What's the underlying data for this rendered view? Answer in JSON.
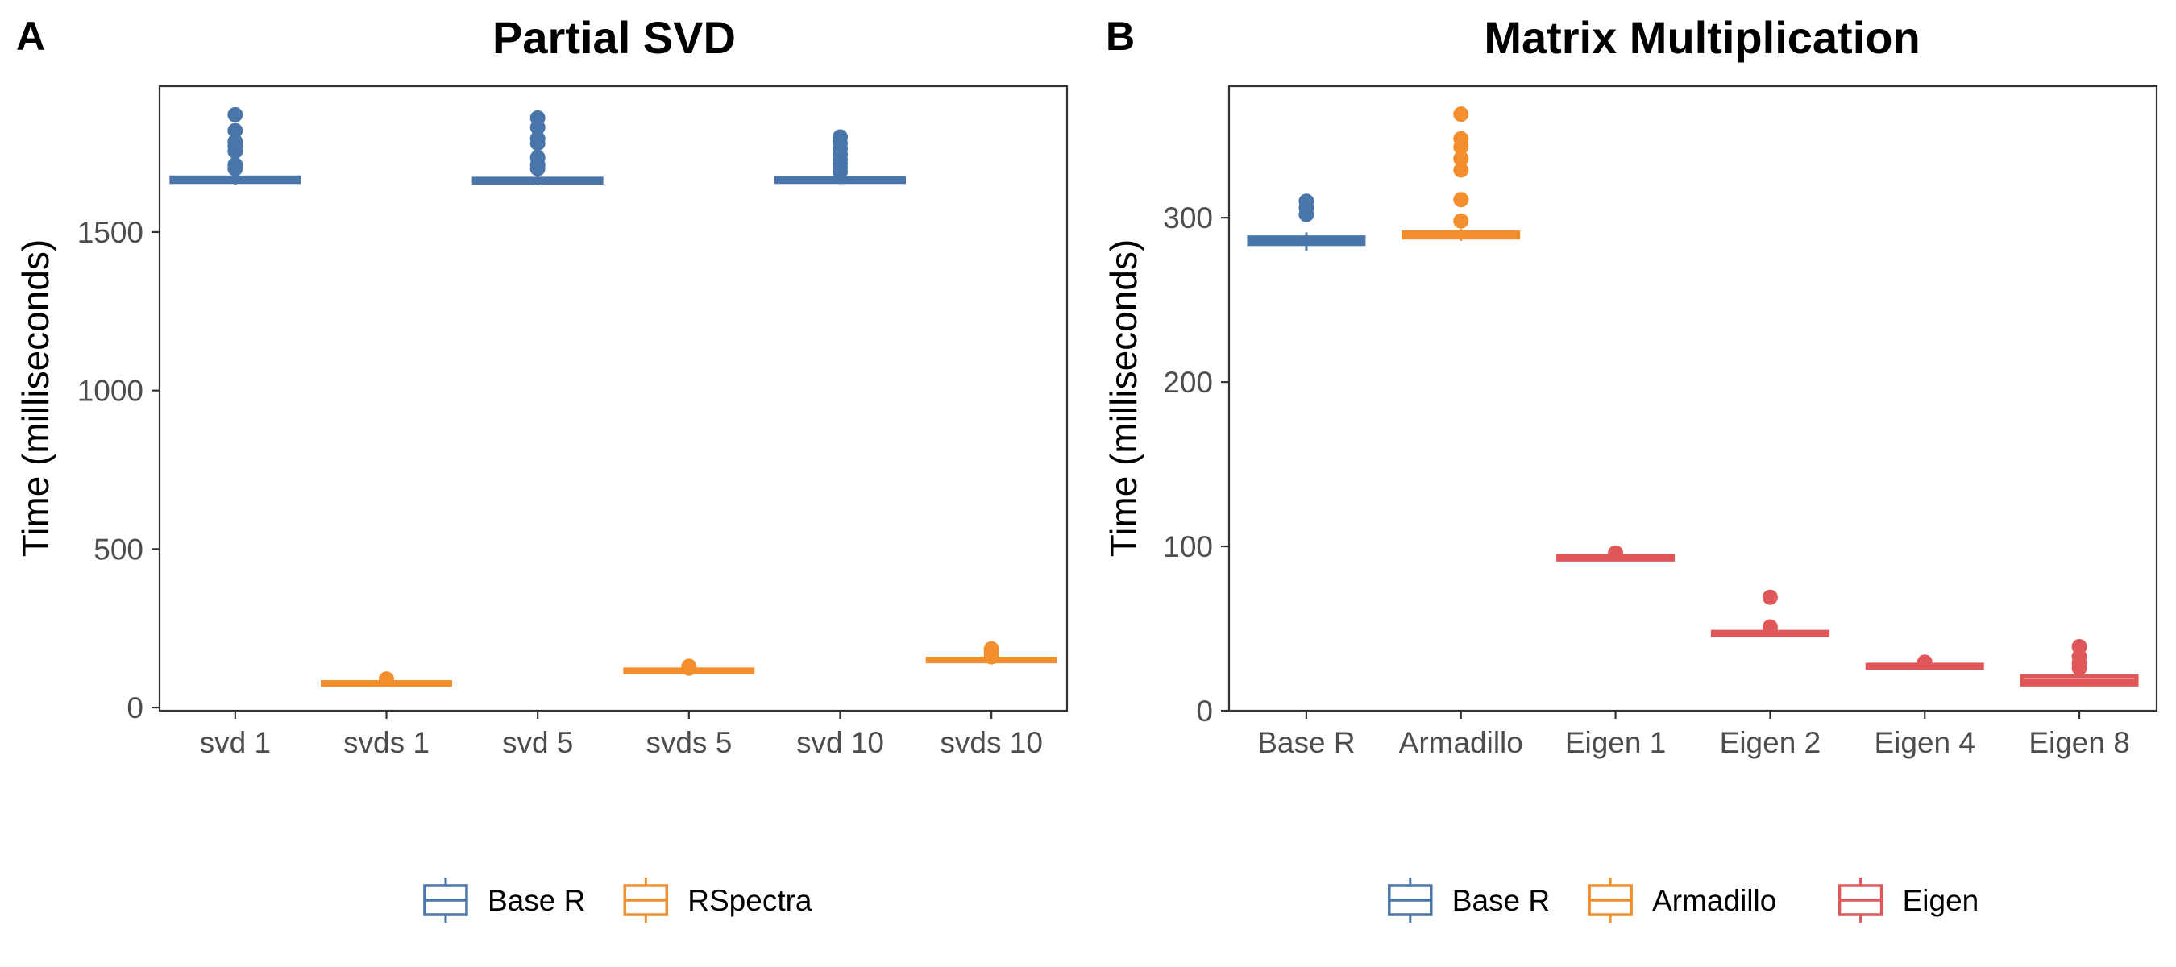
{
  "chart_data": [
    {
      "panel_label": "A",
      "type": "box",
      "title": "Partial SVD",
      "xlabel": "",
      "ylabel": "Time (milliseconds)",
      "ylim": [
        -10,
        1960
      ],
      "yticks": [
        0,
        500,
        1000,
        1500
      ],
      "categories": [
        "svd 1",
        "svds 1",
        "svd 5",
        "svds 5",
        "svd 10",
        "svds 10"
      ],
      "boxes": [
        {
          "category": "svd 1",
          "group": "Base R",
          "q1": 1658,
          "median": 1665,
          "q3": 1672,
          "whisker_low": 1650,
          "whisker_high": 1680,
          "outliers": [
            1700,
            1712,
            1755,
            1770,
            1785,
            1820,
            1870
          ]
        },
        {
          "category": "svds 1",
          "group": "RSpectra",
          "q1": 72,
          "median": 76,
          "q3": 80,
          "whisker_low": 70,
          "whisker_high": 82,
          "outliers": [
            90
          ]
        },
        {
          "category": "svd 5",
          "group": "Base R",
          "q1": 1656,
          "median": 1662,
          "q3": 1668,
          "whisker_low": 1648,
          "whisker_high": 1676,
          "outliers": [
            1700,
            1712,
            1735,
            1780,
            1795,
            1830,
            1860
          ]
        },
        {
          "category": "svds 5",
          "group": "RSpectra",
          "q1": 112,
          "median": 116,
          "q3": 120,
          "whisker_low": 110,
          "whisker_high": 122,
          "outliers": [
            124,
            130
          ]
        },
        {
          "category": "svd 10",
          "group": "Base R",
          "q1": 1658,
          "median": 1664,
          "q3": 1670,
          "whisker_low": 1652,
          "whisker_high": 1675,
          "outliers": [
            1690,
            1702,
            1715,
            1728,
            1745,
            1762,
            1780,
            1800
          ]
        },
        {
          "category": "svds 10",
          "group": "RSpectra",
          "q1": 146,
          "median": 150,
          "q3": 154,
          "whisker_low": 144,
          "whisker_high": 156,
          "outliers": [
            160,
            175,
            185
          ]
        }
      ],
      "legend": {
        "placement": "bottom",
        "entries": [
          {
            "name": "Base R",
            "color": "#4a75a8"
          },
          {
            "name": "RSpectra",
            "color": "#f28e2b"
          }
        ]
      },
      "grid": false
    },
    {
      "panel_label": "B",
      "type": "box",
      "title": "Matrix Multiplication",
      "xlabel": "",
      "ylabel": "Time (milliseconds)",
      "ylim": [
        0,
        380
      ],
      "yticks": [
        0,
        100,
        200,
        300
      ],
      "categories": [
        "Base R",
        "Armadillo",
        "Eigen 1",
        "Eigen 2",
        "Eigen 4",
        "Eigen 8"
      ],
      "boxes": [
        {
          "category": "Base R",
          "group": "Base R",
          "q1": 284,
          "median": 286,
          "q3": 288,
          "whisker_low": 280,
          "whisker_high": 291,
          "outliers": [
            302,
            306,
            310
          ]
        },
        {
          "category": "Armadillo",
          "group": "Armadillo",
          "q1": 288,
          "median": 290,
          "q3": 291,
          "whisker_low": 286,
          "whisker_high": 293,
          "outliers": [
            298,
            311,
            329,
            336,
            343,
            348,
            363
          ]
        },
        {
          "category": "Eigen 1",
          "group": "Eigen",
          "q1": 92,
          "median": 93,
          "q3": 94,
          "whisker_low": 91,
          "whisker_high": 95,
          "outliers": [
            96
          ]
        },
        {
          "category": "Eigen 2",
          "group": "Eigen",
          "q1": 46,
          "median": 47,
          "q3": 48,
          "whisker_low": 45,
          "whisker_high": 49,
          "outliers": [
            51,
            69
          ]
        },
        {
          "category": "Eigen 4",
          "group": "Eigen",
          "q1": 26,
          "median": 27,
          "q3": 28,
          "whisker_low": 25,
          "whisker_high": 29,
          "outliers": [
            29.5
          ]
        },
        {
          "category": "Eigen 8",
          "group": "Eigen",
          "q1": 16,
          "median": 18,
          "q3": 21,
          "whisker_low": 15,
          "whisker_high": 23,
          "outliers": [
            26,
            29,
            33,
            39
          ]
        }
      ],
      "legend": {
        "placement": "bottom",
        "entries": [
          {
            "name": "Base R",
            "color": "#4a75a8"
          },
          {
            "name": "Armadillo",
            "color": "#f28e2b"
          },
          {
            "name": "Eigen",
            "color": "#e05759"
          }
        ]
      },
      "grid": false
    }
  ]
}
